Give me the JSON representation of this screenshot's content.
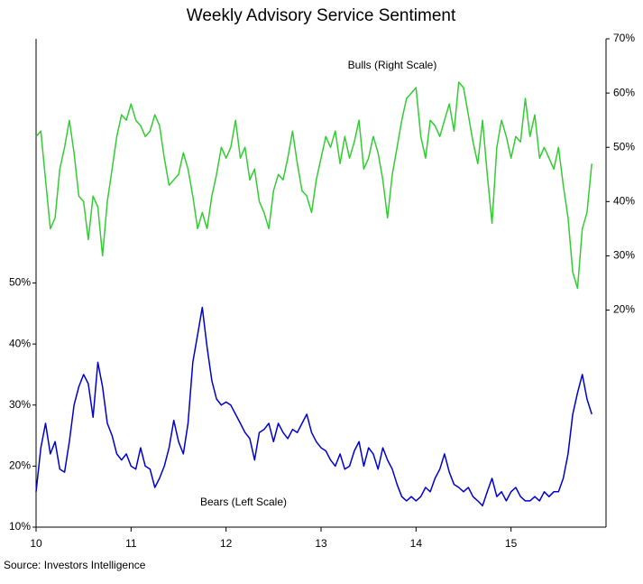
{
  "chart_data": {
    "type": "line",
    "title": "Weekly Advisory Service Sentiment",
    "source": "Source: Investors Intelligence",
    "x": [
      10,
      10.05,
      10.1,
      10.15,
      10.2,
      10.25,
      10.3,
      10.35,
      10.4,
      10.45,
      10.5,
      10.55,
      10.6,
      10.65,
      10.7,
      10.75,
      10.8,
      10.85,
      10.9,
      10.95,
      11,
      11.05,
      11.1,
      11.15,
      11.2,
      11.25,
      11.3,
      11.35,
      11.4,
      11.45,
      11.5,
      11.55,
      11.6,
      11.65,
      11.7,
      11.75,
      11.8,
      11.85,
      11.9,
      11.95,
      12,
      12.05,
      12.1,
      12.15,
      12.2,
      12.25,
      12.3,
      12.35,
      12.4,
      12.45,
      12.5,
      12.55,
      12.6,
      12.65,
      12.7,
      12.75,
      12.8,
      12.85,
      12.9,
      12.95,
      13,
      13.05,
      13.1,
      13.15,
      13.2,
      13.25,
      13.3,
      13.35,
      13.4,
      13.45,
      13.5,
      13.55,
      13.6,
      13.65,
      13.7,
      13.75,
      13.8,
      13.85,
      13.9,
      13.95,
      14,
      14.05,
      14.1,
      14.15,
      14.2,
      14.25,
      14.3,
      14.35,
      14.4,
      14.45,
      14.5,
      14.55,
      14.6,
      14.65,
      14.7,
      14.75,
      14.8,
      14.85,
      14.9,
      14.95,
      15,
      15.05,
      15.1,
      15.15,
      15.2,
      15.25,
      15.3,
      15.35,
      15.4,
      15.45,
      15.5,
      15.55,
      15.6,
      15.65,
      15.7,
      15.75,
      15.8,
      15.85
    ],
    "series": [
      {
        "name": "Bulls (Right Scale)",
        "color": "#33cc33",
        "axis": "y2",
        "values": [
          52,
          53,
          44,
          35,
          37,
          46,
          50,
          55,
          49,
          41,
          40,
          33,
          41,
          39,
          30,
          40,
          46,
          52,
          56,
          55,
          58,
          55,
          54,
          52,
          53,
          56,
          54,
          48,
          43,
          44,
          45,
          49,
          46,
          41,
          35,
          38,
          35,
          41,
          45,
          50,
          48,
          50,
          55,
          48,
          50,
          44,
          46,
          40,
          38,
          35,
          42,
          45,
          44,
          48,
          53,
          47,
          42,
          41,
          38,
          44,
          48,
          52,
          50,
          53,
          47,
          52,
          48,
          51,
          55,
          46,
          48,
          52,
          49,
          44,
          37,
          45,
          50,
          55,
          59,
          60,
          61,
          52,
          48,
          55,
          54,
          52,
          55,
          58,
          53,
          62,
          61,
          56,
          51,
          47,
          55,
          45,
          36,
          50,
          55,
          52,
          48,
          52,
          51,
          59,
          52,
          56,
          48,
          50,
          48,
          46,
          50,
          43,
          37,
          27,
          24,
          35,
          38,
          47
        ]
      },
      {
        "name": "Bears (Left Scale)",
        "color": "#0000cc",
        "values": [
          15.8,
          23,
          27,
          22,
          24,
          19.5,
          19,
          24,
          30,
          33,
          35,
          33.5,
          28,
          37,
          33,
          27,
          25,
          22,
          21,
          22,
          20,
          19.5,
          23,
          20,
          19.5,
          16.5,
          18,
          20,
          23,
          27.5,
          24,
          22,
          27,
          37,
          41.5,
          46,
          39.5,
          34,
          31,
          30,
          30.5,
          30,
          28.5,
          27,
          25.5,
          24.5,
          21,
          25.5,
          26,
          27,
          24,
          27,
          25.5,
          24.5,
          26,
          25.5,
          27,
          28.5,
          25.5,
          24,
          23,
          22.5,
          21,
          20,
          22,
          19.5,
          20,
          22.5,
          24,
          20,
          23,
          22,
          19.5,
          23,
          21,
          19.5,
          17,
          15,
          14.3,
          15,
          14.3,
          15,
          16.5,
          15.8,
          18,
          19.5,
          22,
          19,
          17,
          16.5,
          15.8,
          16.5,
          15,
          14.3,
          13.5,
          15.8,
          18,
          15,
          15.8,
          14.3,
          15.8,
          16.5,
          15,
          14.3,
          14.3,
          15,
          14.3,
          15.8,
          15,
          15.8,
          15.8,
          18,
          22,
          28.5,
          32,
          35,
          31,
          28.5
        ]
      }
    ],
    "xlim": [
      10,
      16
    ],
    "xticks": [
      10,
      11,
      12,
      13,
      14,
      15
    ],
    "ylim": [
      10,
      90
    ],
    "yticks": [
      {
        "value": 10,
        "label": "10%"
      },
      {
        "value": 20,
        "label": "20%"
      },
      {
        "value": 30,
        "label": "30%"
      },
      {
        "value": 40,
        "label": "40%"
      },
      {
        "value": 50,
        "label": "50%"
      }
    ],
    "y2lim": [
      -20,
      70
    ],
    "y2ticks": [
      {
        "value": 20,
        "label": "20%"
      },
      {
        "value": 30,
        "label": "30%"
      },
      {
        "value": 40,
        "label": "40%"
      },
      {
        "value": 50,
        "label": "50%"
      },
      {
        "value": 60,
        "label": "60%"
      },
      {
        "value": 70,
        "label": "70%"
      }
    ]
  }
}
